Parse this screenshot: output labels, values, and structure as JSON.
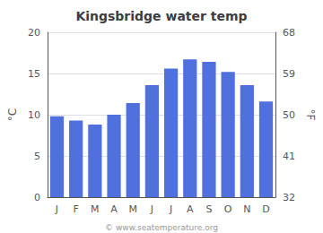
{
  "chart_data": {
    "type": "bar",
    "title": "Kingsbridge water temp",
    "categories": [
      "J",
      "F",
      "M",
      "A",
      "M",
      "J",
      "J",
      "A",
      "S",
      "O",
      "N",
      "D"
    ],
    "values": [
      9.8,
      9.3,
      8.8,
      10.0,
      11.4,
      13.6,
      15.6,
      16.7,
      16.4,
      15.2,
      13.6,
      11.6
    ],
    "ylabel": "°C",
    "y2label": "°F",
    "ylim": [
      0,
      20
    ],
    "yticks": [
      0,
      5,
      10,
      15,
      20
    ],
    "y2lim": [
      32,
      68
    ],
    "y2ticks": [
      32,
      41,
      50,
      59,
      68
    ],
    "grid": true,
    "annotations": [
      "© www.seatemperature.org"
    ]
  }
}
